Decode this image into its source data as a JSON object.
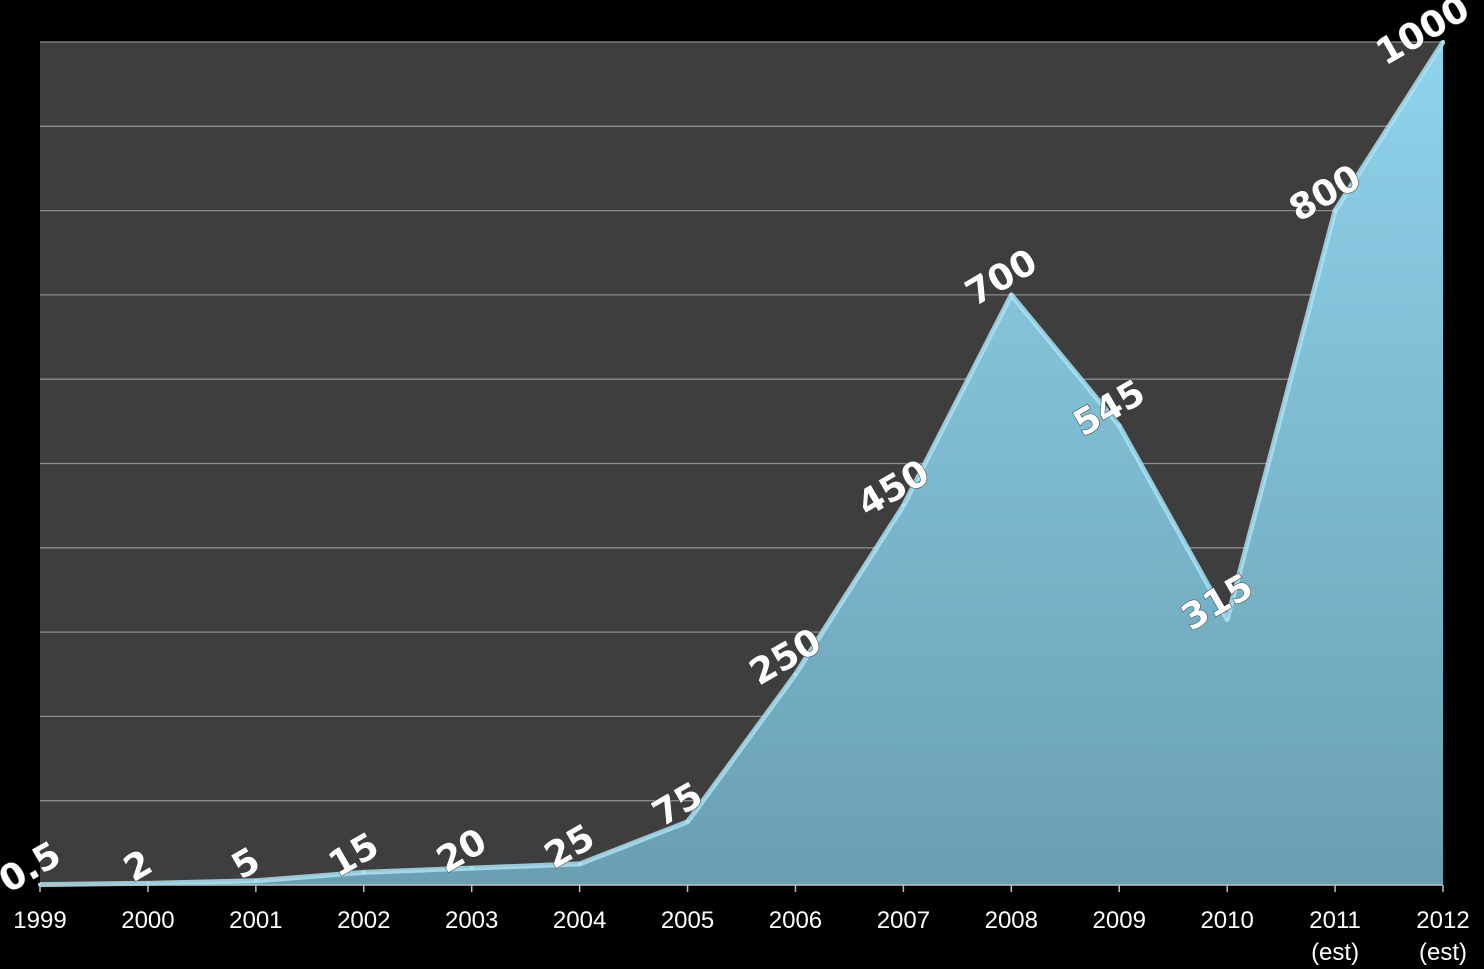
{
  "colors": {
    "background": "#000000",
    "plot_background": "#3e3e3e",
    "gridline": "#8c8c8c",
    "area_top": "#8fd3ec",
    "area_bottom": "#6a9fb2",
    "area_edge": "#a8e2f5",
    "text": "#ffffff"
  },
  "chart_data": {
    "type": "area",
    "title": "",
    "xlabel": "",
    "ylabel": "",
    "x": [
      "1999",
      "2000",
      "2001",
      "2002",
      "2003",
      "2004",
      "2005",
      "2006",
      "2007",
      "2008",
      "2009",
      "2010",
      "2011 (est)",
      "2012 (est)"
    ],
    "tick_labels": [
      [
        "1999"
      ],
      [
        "2000"
      ],
      [
        "2001"
      ],
      [
        "2002"
      ],
      [
        "2003"
      ],
      [
        "2004"
      ],
      [
        "2005"
      ],
      [
        "2006"
      ],
      [
        "2007"
      ],
      [
        "2008"
      ],
      [
        "2009"
      ],
      [
        "2010"
      ],
      [
        "2011",
        "(est)"
      ],
      [
        "2012",
        "(est)"
      ]
    ],
    "values": [
      0.5,
      2,
      5,
      15,
      20,
      25,
      75,
      250,
      450,
      700,
      545,
      315,
      800,
      1000
    ],
    "data_labels": [
      "0.5",
      "2",
      "5",
      "15",
      "20",
      "25",
      "75",
      "250",
      "450",
      "700",
      "545",
      "315",
      "800",
      "1000"
    ],
    "ylim": [
      0,
      1000
    ],
    "y_grid_step": 100,
    "grid": true,
    "show_y_tick_labels": false,
    "legend": "none"
  }
}
